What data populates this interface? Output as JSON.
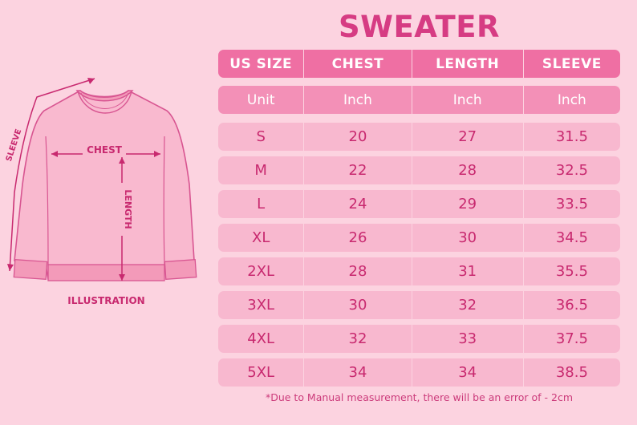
{
  "title": "SWEATER",
  "illustration": {
    "label": "ILLUSTRATION",
    "chest_label": "CHEST",
    "length_label": "LENGTH",
    "sleeve_label": "SLEEVE"
  },
  "table": {
    "headers": [
      "US SIZE",
      "CHEST",
      "LENGTH",
      "SLEEVE"
    ],
    "units": [
      "Unit",
      "Inch",
      "Inch",
      "Inch"
    ],
    "rows": [
      [
        "S",
        "20",
        "27",
        "31.5"
      ],
      [
        "M",
        "22",
        "28",
        "32.5"
      ],
      [
        "L",
        "24",
        "29",
        "33.5"
      ],
      [
        "XL",
        "26",
        "30",
        "34.5"
      ],
      [
        "2XL",
        "28",
        "31",
        "35.5"
      ],
      [
        "3XL",
        "30",
        "32",
        "36.5"
      ],
      [
        "4XL",
        "32",
        "33",
        "37.5"
      ],
      [
        "5XL",
        "34",
        "34",
        "38.5"
      ]
    ]
  },
  "footnote": "*Due to Manual measurement, there will be an error of - 2cm",
  "colors": {
    "background": "#fcd3e0",
    "accent": "#d63c83",
    "header_bg": "#ef6fa3",
    "unit_bg": "#f390b7",
    "row_bg": "#f8b8cf"
  }
}
